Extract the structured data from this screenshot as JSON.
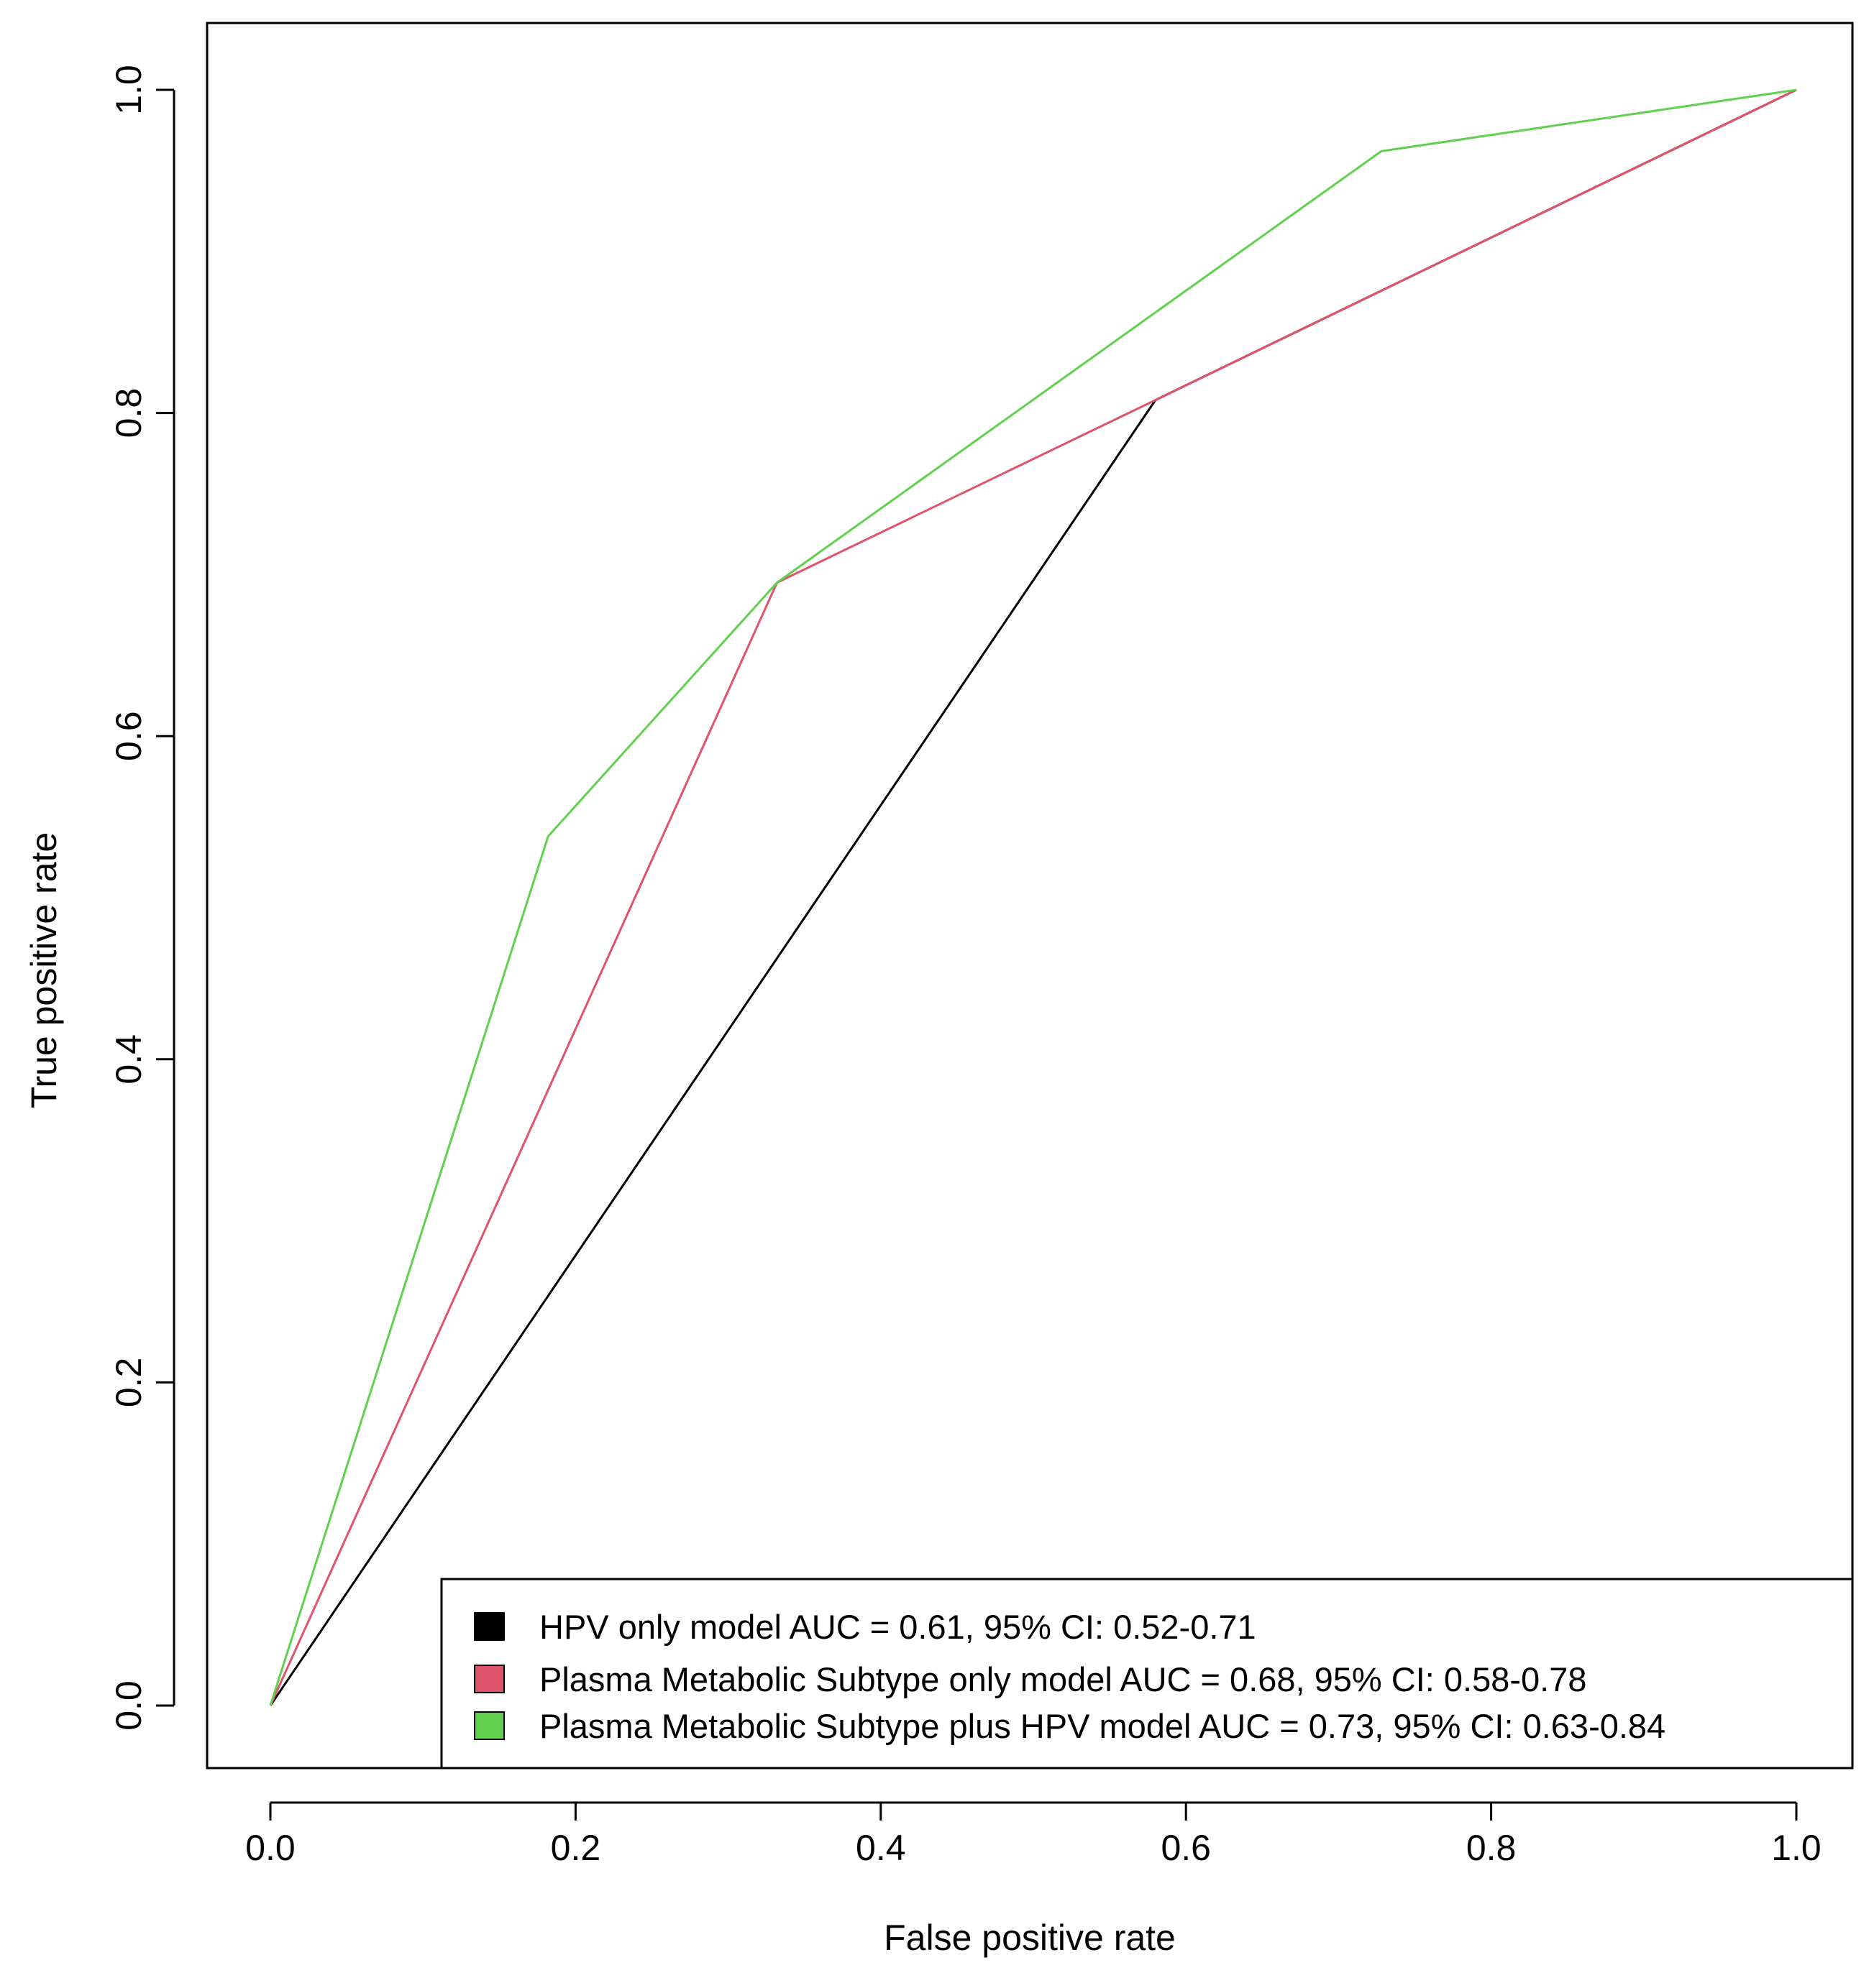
{
  "chart_data": {
    "type": "line",
    "title": "",
    "xlabel": "False positive rate",
    "ylabel": "True positive rate",
    "xlim": [
      0.0,
      1.0
    ],
    "ylim": [
      0.0,
      1.0
    ],
    "xticks": [
      "0.0",
      "0.2",
      "0.4",
      "0.6",
      "0.8",
      "1.0"
    ],
    "yticks": [
      "0.0",
      "0.2",
      "0.4",
      "0.6",
      "0.8",
      "1.0"
    ],
    "grid": false,
    "legend_position": "bottom-right",
    "series": [
      {
        "name": "HPV only model AUC = 0.61, 95% CI: 0.52-0.71",
        "color": "#000000",
        "x": [
          0.0,
          0.58,
          1.0
        ],
        "y": [
          0.0,
          0.808,
          1.0
        ]
      },
      {
        "name": "Plasma Metabolic Subtype only model AUC = 0.68, 95% CI: 0.58-0.78",
        "color": "#DF536B",
        "x": [
          0.0,
          0.332,
          0.58,
          1.0
        ],
        "y": [
          0.0,
          0.695,
          0.808,
          1.0
        ]
      },
      {
        "name": "Plasma Metabolic Subtype plus HPV model AUC = 0.73, 95% CI: 0.63-0.84",
        "color": "#61D04F",
        "x": [
          0.0,
          0.182,
          0.332,
          0.728,
          1.0
        ],
        "y": [
          0.0,
          0.538,
          0.695,
          0.962,
          1.0
        ]
      }
    ]
  }
}
